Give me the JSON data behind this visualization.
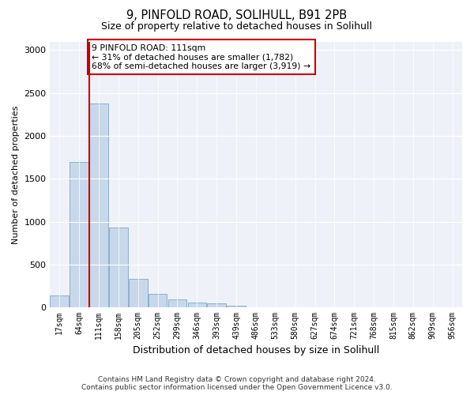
{
  "title1": "9, PINFOLD ROAD, SOLIHULL, B91 2PB",
  "title2": "Size of property relative to detached houses in Solihull",
  "xlabel": "Distribution of detached houses by size in Solihull",
  "ylabel": "Number of detached properties",
  "annotation_line1": "9 PINFOLD ROAD: 111sqm",
  "annotation_line2": "← 31% of detached houses are smaller (1,782)",
  "annotation_line3": "68% of semi-detached houses are larger (3,919) →",
  "footer1": "Contains HM Land Registry data © Crown copyright and database right 2024.",
  "footer2": "Contains public sector information licensed under the Open Government Licence v3.0.",
  "bin_labels": [
    "17sqm",
    "64sqm",
    "111sqm",
    "158sqm",
    "205sqm",
    "252sqm",
    "299sqm",
    "346sqm",
    "393sqm",
    "439sqm",
    "486sqm",
    "533sqm",
    "580sqm",
    "627sqm",
    "674sqm",
    "721sqm",
    "768sqm",
    "815sqm",
    "862sqm",
    "909sqm",
    "956sqm"
  ],
  "bar_values": [
    140,
    1700,
    2380,
    930,
    330,
    160,
    90,
    60,
    45,
    20,
    5,
    3,
    2,
    0,
    0,
    0,
    0,
    0,
    0,
    0,
    0
  ],
  "bar_color": "#c8d8ea",
  "bar_edge_color": "#8ab0cc",
  "red_line_color": "#cc0000",
  "annotation_box_color": "#cc0000",
  "background_color": "#eef2f8",
  "ylim": [
    0,
    3100
  ],
  "yticks": [
    0,
    500,
    1000,
    1500,
    2000,
    2500,
    3000
  ]
}
